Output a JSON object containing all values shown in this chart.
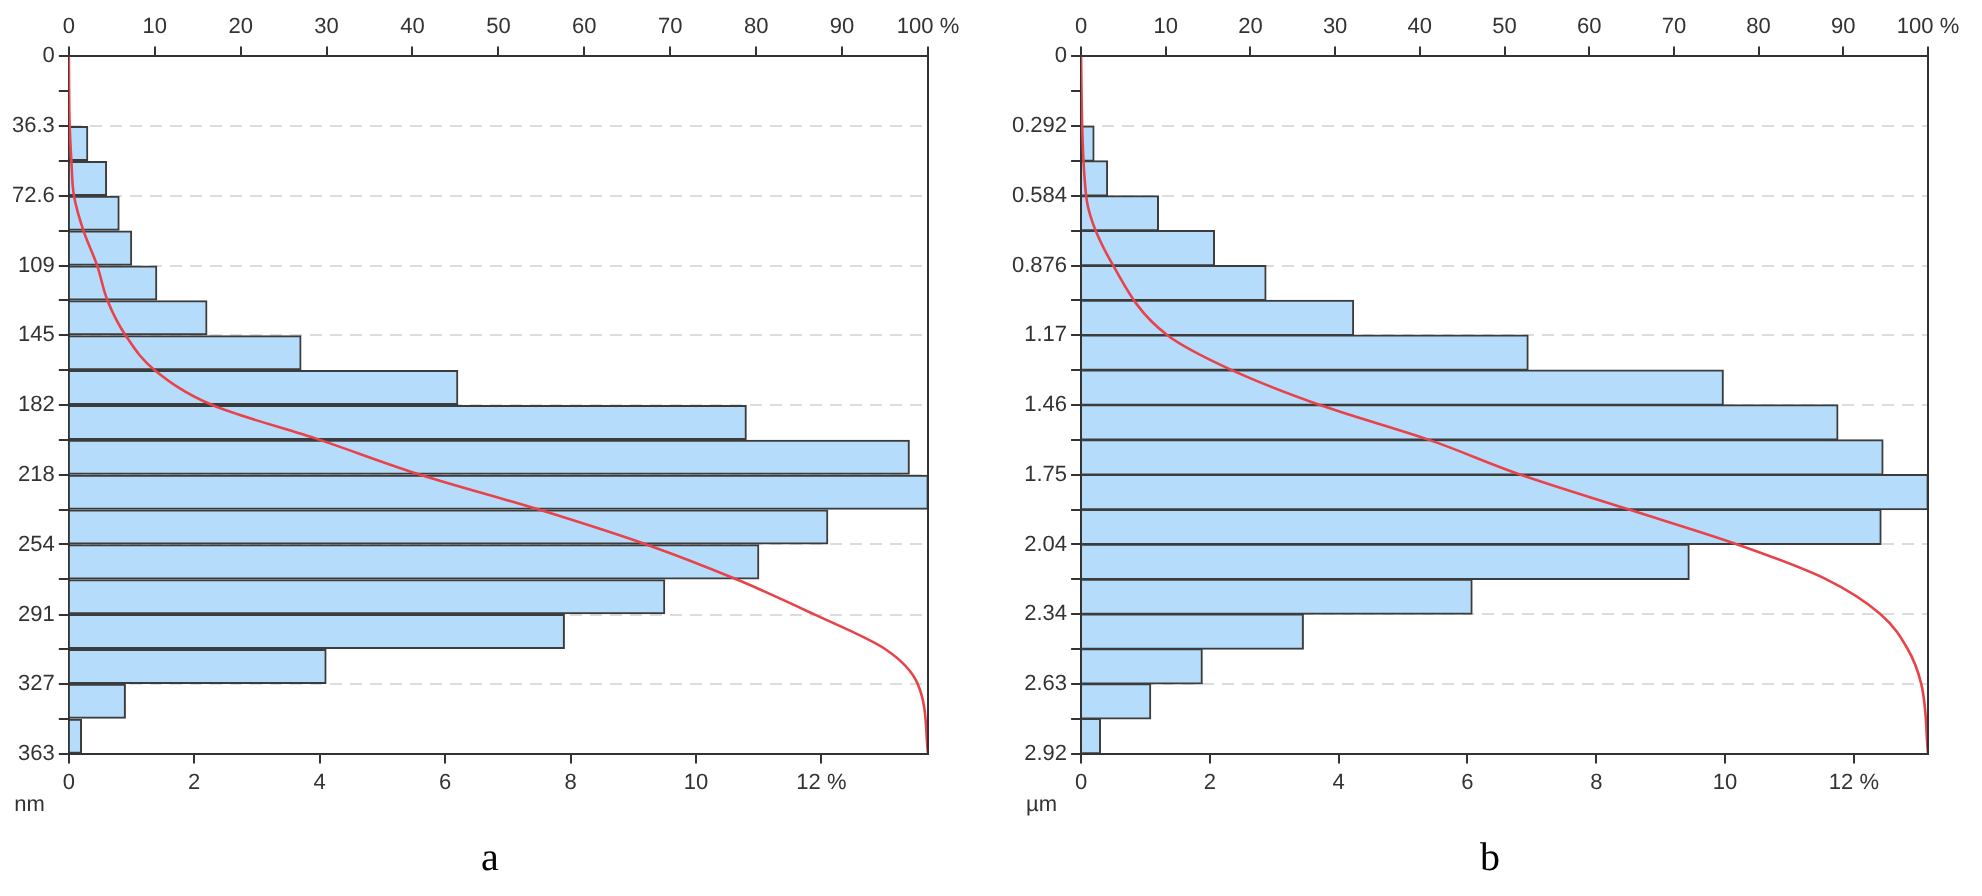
{
  "chart_data": [
    {
      "type": "histogram",
      "orientation": "horizontal",
      "ylabel": "nm",
      "annotations": [
        "a"
      ],
      "grid": "y",
      "legend": false,
      "bins": [
        0,
        18.15,
        36.3,
        54.45,
        72.6,
        90.75,
        108.9,
        127.05,
        145.2,
        163.35,
        181.5,
        199.65,
        217.8,
        235.95,
        254.1,
        272.25,
        290.4,
        308.55,
        326.7,
        344.85,
        363
      ],
      "ylim": [
        363,
        0
      ],
      "yticks": [
        0,
        {
          "value": 18.15,
          "label": null
        },
        36.3,
        {
          "value": 54.45,
          "label": null
        },
        72.6,
        {
          "value": 90.75,
          "label": null
        },
        {
          "value": 108.9,
          "label": "109"
        },
        {
          "value": 127.05,
          "label": null
        },
        {
          "value": 145.2,
          "label": "145"
        },
        {
          "value": 163.35,
          "label": null
        },
        {
          "value": 181.5,
          "label": "182"
        },
        {
          "value": 199.65,
          "label": null
        },
        {
          "value": 217.8,
          "label": "218"
        },
        {
          "value": 235.95,
          "label": null
        },
        {
          "value": 254.1,
          "label": "254"
        },
        {
          "value": 272.25,
          "label": null
        },
        291,
        {
          "value": 308.55,
          "label": null
        },
        {
          "value": 326.7,
          "label": "327"
        },
        {
          "value": 344.85,
          "label": null
        },
        363
      ],
      "xlim": [
        0,
        13.7
      ],
      "xticks": [
        0,
        2,
        4,
        6,
        8,
        10,
        {
          "value": 12,
          "label": "12 %"
        }
      ],
      "x2lim": [
        0,
        100
      ],
      "x2ticks": [
        0,
        10,
        20,
        30,
        40,
        50,
        60,
        70,
        80,
        90,
        {
          "value": 100,
          "label": "100 %"
        }
      ],
      "series": [
        {
          "color": "#b5dcfa",
          "values": [
            0,
            0,
            0.3,
            0.6,
            0.8,
            1.0,
            1.4,
            2.2,
            3.7,
            6.2,
            10.8,
            13.4,
            13.7,
            12.1,
            11.0,
            9.5,
            7.9,
            4.1,
            0.9,
            0.2
          ]
        },
        {
          "type": "line",
          "axis": "x2",
          "color": "#e8434b",
          "x": [
            0,
            36.3,
            54.45,
            72.6,
            90.75,
            108.9,
            127.05,
            145.2,
            163.35,
            181.5,
            199.65,
            217.8,
            235.95,
            254.1,
            272.25,
            290.4,
            308.55,
            326.7,
            363
          ],
          "values": [
            0,
            0.1,
            0.3,
            0.6,
            1.7,
            3.3,
            4.5,
            6.6,
            10,
            16.7,
            29.2,
            40.9,
            54.7,
            67.2,
            77.7,
            86.7,
            95,
            98.8,
            100
          ]
        }
      ]
    },
    {
      "type": "histogram",
      "orientation": "horizontal",
      "ylabel": "µm",
      "annotations": [
        "b"
      ],
      "grid": "y",
      "legend": false,
      "bins": [
        0,
        0.146,
        0.292,
        0.438,
        0.584,
        0.73,
        0.876,
        1.022,
        1.168,
        1.314,
        1.46,
        1.606,
        1.752,
        1.898,
        2.044,
        2.19,
        2.336,
        2.482,
        2.628,
        2.774,
        2.92
      ],
      "ylim": [
        2.92,
        0
      ],
      "yticks": [
        0,
        {
          "value": 0.146,
          "label": null
        },
        0.292,
        {
          "value": 0.438,
          "label": null
        },
        0.584,
        {
          "value": 0.73,
          "label": null
        },
        0.876,
        {
          "value": 1.022,
          "label": null
        },
        {
          "value": 1.168,
          "label": "1.17"
        },
        {
          "value": 1.314,
          "label": null
        },
        1.46,
        {
          "value": 1.606,
          "label": null
        },
        {
          "value": 1.752,
          "label": "1.75"
        },
        {
          "value": 1.898,
          "label": null
        },
        {
          "value": 2.044,
          "label": "2.04"
        },
        {
          "value": 2.19,
          "label": null
        },
        {
          "value": 2.336,
          "label": "2.34"
        },
        {
          "value": 2.482,
          "label": null
        },
        {
          "value": 2.628,
          "label": "2.63"
        },
        {
          "value": 2.774,
          "label": null
        },
        2.92
      ],
      "xlim": [
        0,
        13.15
      ],
      "xticks": [
        0,
        2,
        4,
        6,
        8,
        10,
        {
          "value": 12,
          "label": "12 %"
        }
      ],
      "x2lim": [
        0,
        100
      ],
      "x2ticks": [
        0,
        10,
        20,
        30,
        40,
        50,
        60,
        70,
        80,
        90,
        {
          "value": 100,
          "label": "100 %"
        }
      ],
      "series": [
        {
          "color": "#b5dcfa",
          "values": [
            0,
            0,
            0.2,
            0.41,
            1.2,
            2.07,
            2.87,
            4.23,
            6.94,
            9.97,
            11.75,
            12.45,
            13.15,
            12.42,
            9.44,
            6.07,
            3.45,
            1.88,
            1.08,
            0.3
          ]
        },
        {
          "type": "line",
          "axis": "x2",
          "color": "#e8434b",
          "x": [
            0,
            0.584,
            0.876,
            1.168,
            1.314,
            1.46,
            1.606,
            1.752,
            1.898,
            2.044,
            2.19,
            2.336,
            2.482,
            2.628,
            2.92
          ],
          "values": [
            0,
            0.6,
            3.8,
            10.2,
            17.8,
            28.2,
            41.1,
            51.9,
            64.7,
            77.5,
            88,
            94.4,
            97.6,
            99.2,
            100
          ]
        }
      ]
    }
  ]
}
